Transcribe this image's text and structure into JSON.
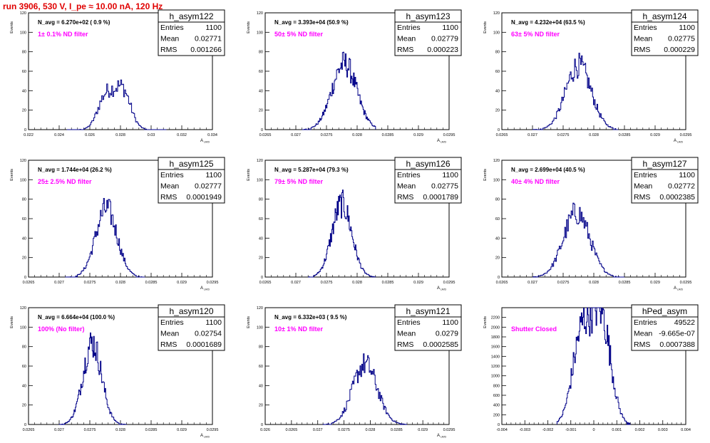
{
  "run_title": "run 3906,   530 V, I_pe ≈ 10.00 nA, 120 Hz",
  "colors": {
    "hist": "#000088",
    "annotation": "#ff00ff",
    "run_title": "#e00000",
    "axis": "#000000"
  },
  "stat_labels": [
    "Entries",
    "Mean",
    "RMS"
  ],
  "chart_data": [
    {
      "type": "histogram",
      "name": "h_asym122",
      "navg": "N_avg = 6.270e+02 ( 0.9 %)",
      "filter": "1± 0.1% ND filter",
      "entries": "1100",
      "mean": "0.02771",
      "rms": "0.001266",
      "ylabel": "Events",
      "xlabel": "A",
      "xlim": [
        0.022,
        0.034
      ],
      "ylim": [
        0,
        120
      ],
      "xticks": [
        0.022,
        0.024,
        0.026,
        0.028,
        0.03,
        0.032,
        0.034
      ],
      "xticklabels": [
        "0.022",
        "0.024",
        "0.026",
        "0.028",
        "0.03",
        "0.032",
        "0.034"
      ],
      "yticks": [
        0,
        20,
        40,
        60,
        80,
        100,
        120
      ],
      "yticklabels": [
        "0",
        "20",
        "40",
        "60",
        "80",
        "100",
        "120"
      ],
      "mu": 0.02771,
      "sigma": 0.00095,
      "bimodal": true,
      "peak": 40,
      "bins": 100,
      "range": [
        0.0245,
        0.031
      ]
    },
    {
      "type": "histogram",
      "name": "h_asym123",
      "navg": "N_avg = 3.393e+04 (50.9 %)",
      "filter": "50± 5% ND filter",
      "entries": "1100",
      "mean": "0.02779",
      "rms": "0.000223",
      "ylabel": "Events",
      "xlabel": "A",
      "xlim": [
        0.0265,
        0.0295
      ],
      "ylim": [
        0,
        120
      ],
      "xticks": [
        0.0265,
        0.027,
        0.0275,
        0.028,
        0.0285,
        0.029,
        0.0295
      ],
      "xticklabels": [
        "0.0265",
        "0.027",
        "0.0275",
        "0.028",
        "0.0285",
        "0.029",
        "0.0295"
      ],
      "yticks": [
        0,
        20,
        40,
        60,
        80,
        100,
        120
      ],
      "yticklabels": [
        "0",
        "20",
        "40",
        "60",
        "80",
        "100",
        "120"
      ],
      "mu": 0.02779,
      "sigma": 0.000223,
      "bimodal": false,
      "peak": 68,
      "bins": 100,
      "range": [
        0.0271,
        0.0283
      ]
    },
    {
      "type": "histogram",
      "name": "h_asym124",
      "navg": "N_avg = 4.232e+04 (63.5 %)",
      "filter": "63± 5% ND filter",
      "entries": "1100",
      "mean": "0.02775",
      "rms": "0.000229",
      "ylabel": "Events",
      "xlabel": "A",
      "xlim": [
        0.0265,
        0.0295
      ],
      "ylim": [
        0,
        120
      ],
      "xticks": [
        0.0265,
        0.027,
        0.0275,
        0.028,
        0.0285,
        0.029,
        0.0295
      ],
      "xticklabels": [
        "0.0265",
        "0.027",
        "0.0275",
        "0.028",
        "0.0285",
        "0.029",
        "0.0295"
      ],
      "yticks": [
        0,
        20,
        40,
        60,
        80,
        100,
        120
      ],
      "yticklabels": [
        "0",
        "20",
        "40",
        "60",
        "80",
        "100",
        "120"
      ],
      "mu": 0.02775,
      "sigma": 0.000229,
      "bimodal": false,
      "peak": 66,
      "bins": 100,
      "range": [
        0.027,
        0.0284
      ]
    },
    {
      "type": "histogram",
      "name": "h_asym125",
      "navg": "N_avg = 1.744e+04 (26.2 %)",
      "filter": "25± 2.5% ND filter",
      "entries": "1100",
      "mean": "0.02777",
      "rms": "0.0001949",
      "ylabel": "Events",
      "xlabel": "A",
      "xlim": [
        0.0265,
        0.0295
      ],
      "ylim": [
        0,
        120
      ],
      "xticks": [
        0.0265,
        0.027,
        0.0275,
        0.028,
        0.0285,
        0.029,
        0.0295
      ],
      "xticklabels": [
        "0.0265",
        "0.027",
        "0.0275",
        "0.028",
        "0.0285",
        "0.029",
        "0.0295"
      ],
      "yticks": [
        0,
        20,
        40,
        60,
        80,
        100,
        120
      ],
      "yticklabels": [
        "0",
        "20",
        "40",
        "60",
        "80",
        "100",
        "120"
      ],
      "mu": 0.02777,
      "sigma": 0.000195,
      "bimodal": false,
      "peak": 70,
      "bins": 100,
      "range": [
        0.0271,
        0.0284
      ]
    },
    {
      "type": "histogram",
      "name": "h_asym126",
      "navg": "N_avg = 5.287e+04 (79.3 %)",
      "filter": "79± 5% ND filter",
      "entries": "1100",
      "mean": "0.02775",
      "rms": "0.0001789",
      "ylabel": "Events",
      "xlabel": "A",
      "xlim": [
        0.0265,
        0.0295
      ],
      "ylim": [
        0,
        120
      ],
      "xticks": [
        0.0265,
        0.027,
        0.0275,
        0.028,
        0.0285,
        0.029,
        0.0295
      ],
      "xticklabels": [
        "0.0265",
        "0.027",
        "0.0275",
        "0.028",
        "0.0285",
        "0.029",
        "0.0295"
      ],
      "yticks": [
        0,
        20,
        40,
        60,
        80,
        100,
        120
      ],
      "yticklabels": [
        "0",
        "20",
        "40",
        "60",
        "80",
        "100",
        "120"
      ],
      "mu": 0.02775,
      "sigma": 0.000179,
      "bimodal": false,
      "peak": 75,
      "bins": 100,
      "range": [
        0.0272,
        0.0283
      ]
    },
    {
      "type": "histogram",
      "name": "h_asym127",
      "navg": "N_avg = 2.699e+04 (40.5 %)",
      "filter": "40± 4% ND filter",
      "entries": "1100",
      "mean": "0.02772",
      "rms": "0.0002385",
      "ylabel": "Events",
      "xlabel": "A",
      "xlim": [
        0.0265,
        0.0295
      ],
      "ylim": [
        0,
        120
      ],
      "xticks": [
        0.0265,
        0.027,
        0.0275,
        0.028,
        0.0285,
        0.029,
        0.0295
      ],
      "xticklabels": [
        "0.0265",
        "0.027",
        "0.0275",
        "0.028",
        "0.0285",
        "0.029",
        "0.0295"
      ],
      "yticks": [
        0,
        20,
        40,
        60,
        80,
        100,
        120
      ],
      "yticklabels": [
        "0",
        "20",
        "40",
        "60",
        "80",
        "100",
        "120"
      ],
      "mu": 0.02772,
      "sigma": 0.000238,
      "bimodal": false,
      "peak": 66,
      "bins": 100,
      "range": [
        0.027,
        0.0285
      ]
    },
    {
      "type": "histogram",
      "name": "h_asym120",
      "navg": "N_avg = 6.664e+04 (100.0 %)",
      "filter": "100% (No filter)",
      "entries": "1100",
      "mean": "0.02754",
      "rms": "0.0001689",
      "ylabel": "Events",
      "xlabel": "A",
      "xlim": [
        0.0265,
        0.0295
      ],
      "ylim": [
        0,
        120
      ],
      "xticks": [
        0.0265,
        0.027,
        0.0275,
        0.028,
        0.0285,
        0.029,
        0.0295
      ],
      "xticklabels": [
        "0.0265",
        "0.027",
        "0.0275",
        "0.028",
        "0.0285",
        "0.029",
        "0.0295"
      ],
      "yticks": [
        0,
        20,
        40,
        60,
        80,
        100,
        120
      ],
      "yticklabels": [
        "0",
        "20",
        "40",
        "60",
        "80",
        "100",
        "120"
      ],
      "mu": 0.02754,
      "sigma": 0.000169,
      "bimodal": false,
      "peak": 84,
      "bins": 100,
      "range": [
        0.027,
        0.0281
      ]
    },
    {
      "type": "histogram",
      "name": "h_asym121",
      "navg": "N_avg = 6.332e+03 ( 9.5 %)",
      "filter": "10± 1% ND filter",
      "entries": "1100",
      "mean": "0.0279",
      "rms": "0.0002585",
      "ylabel": "Events",
      "xlabel": "A",
      "xlim": [
        0.026,
        0.0295
      ],
      "ylim": [
        0,
        120
      ],
      "xticks": [
        0.026,
        0.0265,
        0.027,
        0.0275,
        0.028,
        0.0285,
        0.029,
        0.0295
      ],
      "xticklabels": [
        "0.026",
        "0.0265",
        "0.027",
        "0.0275",
        "0.028",
        "0.0285",
        "0.029",
        "0.0295"
      ],
      "yticks": [
        0,
        20,
        40,
        60,
        80,
        100,
        120
      ],
      "yticklabels": [
        "0",
        "20",
        "40",
        "60",
        "80",
        "100",
        "120"
      ],
      "mu": 0.0279,
      "sigma": 0.000258,
      "bimodal": false,
      "peak": 62,
      "bins": 100,
      "range": [
        0.0271,
        0.0287
      ]
    },
    {
      "type": "histogram",
      "name": "hPed_asym",
      "navg": "",
      "filter": "Shutter Closed",
      "entries": "49522",
      "mean": "-9.665e-07",
      "rms": "0.0007388",
      "ylabel": "Events",
      "xlabel": "",
      "xlim": [
        -0.004,
        0.004
      ],
      "ylim": [
        0,
        2400
      ],
      "xticks": [
        -0.004,
        -0.003,
        -0.002,
        -0.001,
        0,
        0.001,
        0.002,
        0.003,
        0.004
      ],
      "xticklabels": [
        "-0.004",
        "-0.003",
        "-0.002",
        "-0.001",
        "0",
        "0.001",
        "0.002",
        "0.003",
        "0.004"
      ],
      "yticks": [
        0,
        200,
        400,
        600,
        800,
        1000,
        1200,
        1400,
        1600,
        1800,
        2000,
        2200
      ],
      "yticklabels": [
        "0",
        "200",
        "400",
        "600",
        "800",
        "1000",
        "1200",
        "1400",
        "1600",
        "1800",
        "2000",
        "2200"
      ],
      "mu": 0.0,
      "sigma": 0.00074,
      "bimodal": true,
      "peak": 2150,
      "bins": 100,
      "range": [
        -0.0016,
        0.0016
      ]
    }
  ]
}
